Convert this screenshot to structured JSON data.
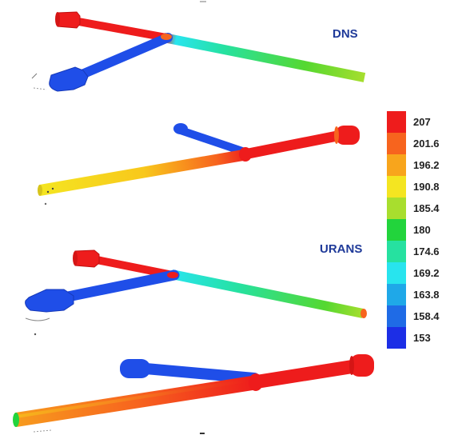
{
  "labels": {
    "dns": "DNS",
    "urans": "URANS"
  },
  "colors": {
    "hot": "#ee1c1c",
    "cold": "#1f4ee8",
    "background": "#ffffff",
    "label_text": "#1f3a99"
  },
  "legend": {
    "entries": [
      {
        "value": "207",
        "color": "#ee1c1c"
      },
      {
        "value": "201.6",
        "color": "#f7641e"
      },
      {
        "value": "196.2",
        "color": "#f8a51c"
      },
      {
        "value": "190.8",
        "color": "#f4e521"
      },
      {
        "value": "185.4",
        "color": "#a8de2e"
      },
      {
        "value": "180",
        "color": "#22d43c"
      },
      {
        "value": "174.6",
        "color": "#26e1a0"
      },
      {
        "value": "169.2",
        "color": "#28e4ee"
      },
      {
        "value": "163.8",
        "color": "#1fa8e8"
      },
      {
        "value": "158.4",
        "color": "#1f6be6"
      },
      {
        "value": "153",
        "color": "#1c2ee6"
      }
    ]
  }
}
